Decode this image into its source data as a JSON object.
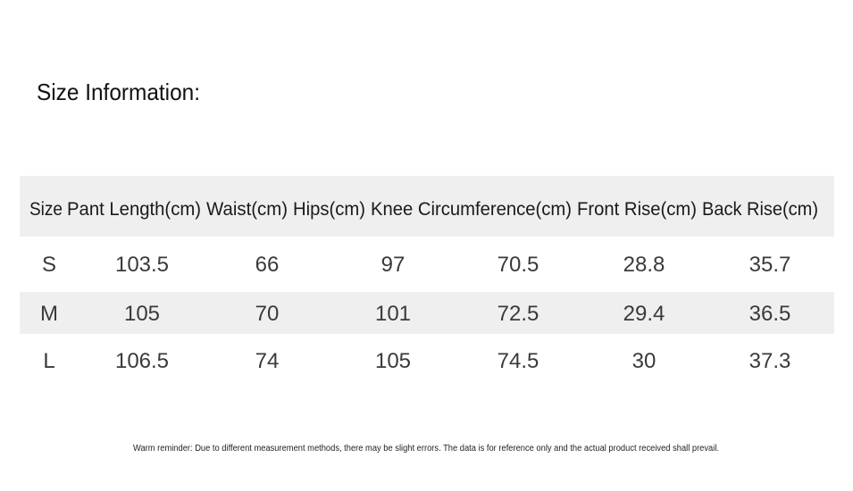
{
  "title": "Size Information:",
  "table": {
    "header": [
      "Size",
      "Pant Length(cm)",
      "Waist(cm)",
      "Hips(cm)",
      "Knee Circumference(cm)",
      "Front Rise(cm)",
      "Back Rise(cm)"
    ],
    "rows": [
      [
        "S",
        "103.5",
        "66",
        "97",
        "70.5",
        "28.8",
        "35.7"
      ],
      [
        "M",
        "105",
        "70",
        "101",
        "72.5",
        "29.4",
        "36.5"
      ],
      [
        "L",
        "106.5",
        "74",
        "105",
        "74.5",
        "30",
        "37.3"
      ]
    ]
  },
  "footnote": "Warm reminder: Due to different measurement methods, there may be slight errors. The data is for reference only and the actual product received shall prevail."
}
